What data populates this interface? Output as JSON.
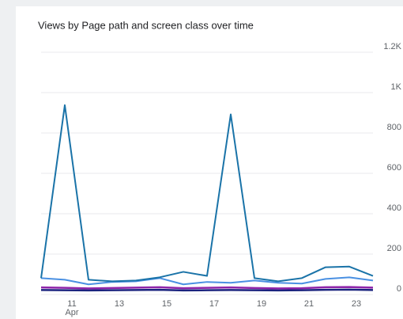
{
  "chart_data": {
    "type": "line",
    "title": "Views by Page path and screen class over time",
    "categories": [
      null,
      "11",
      null,
      "13",
      null,
      "15",
      null,
      "17",
      null,
      "19",
      null,
      "21",
      null,
      "23",
      null
    ],
    "month_label": "Apr",
    "series": [
      {
        "color": "#1a73a8",
        "values": [
          81,
          938,
          73,
          65,
          69,
          85,
          112,
          92,
          892,
          81,
          65,
          81,
          135,
          138,
          92
        ]
      },
      {
        "color": "#4a90e2",
        "values": [
          81,
          73,
          50,
          62,
          65,
          81,
          50,
          62,
          58,
          69,
          58,
          54,
          77,
          85,
          69
        ]
      },
      {
        "color": "#8e24aa",
        "values": [
          35,
          33,
          30,
          32,
          34,
          36,
          31,
          33,
          35,
          32,
          30,
          31,
          36,
          37,
          34
        ]
      },
      {
        "color": "#1a237e",
        "values": [
          22,
          21,
          20,
          21,
          22,
          23,
          20,
          21,
          22,
          21,
          20,
          21,
          23,
          24,
          22
        ]
      }
    ],
    "ylim": [
      0,
      1200
    ],
    "yticks": [
      0,
      200,
      400,
      600,
      800,
      {
        "value": 1000,
        "label": "1K"
      },
      {
        "value": 1200,
        "label": "1.2K"
      }
    ],
    "grid": true
  }
}
